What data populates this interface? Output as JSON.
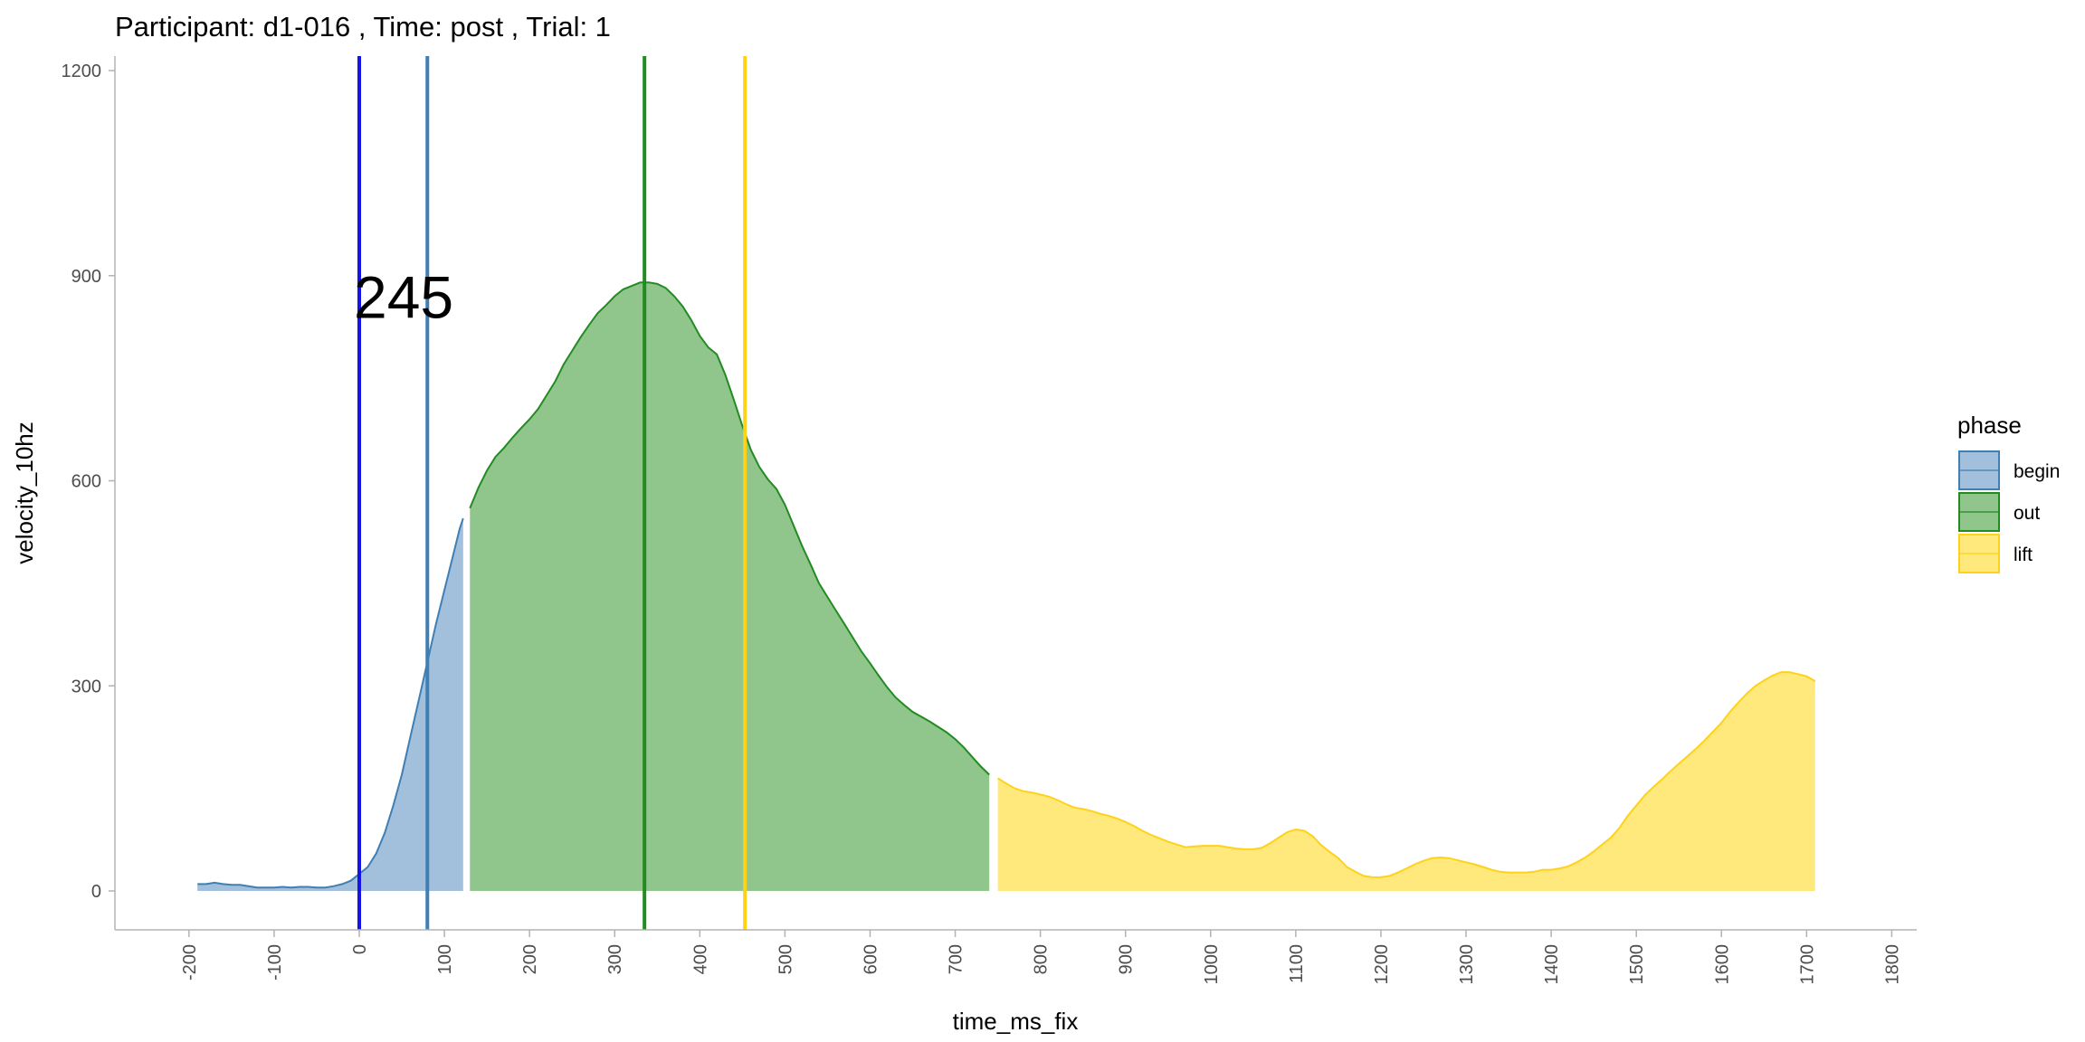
{
  "chart_data": {
    "type": "area",
    "title": "Participant:  d1-016 , Time: post , Trial:  1",
    "xlabel": "time_ms_fix",
    "ylabel": "velocity_10hz",
    "xlim": [
      -200,
      1800
    ],
    "ylim": [
      0,
      1200
    ],
    "x_ticks": [
      -200,
      -100,
      0,
      100,
      200,
      300,
      400,
      500,
      600,
      700,
      800,
      900,
      1000,
      1100,
      1200,
      1300,
      1400,
      1500,
      1600,
      1700,
      1800
    ],
    "x_tick_labels": [
      "-200",
      "-100",
      "0",
      "100",
      "200",
      "300",
      "400",
      "500",
      "600",
      "700",
      "800",
      "900",
      "1000",
      "1100",
      "1200",
      "1300",
      "1400",
      "1500",
      "1600",
      "1700",
      "1800"
    ],
    "y_ticks": [
      0,
      300,
      600,
      900,
      1200
    ],
    "y_tick_labels": [
      "0",
      "300",
      "600",
      "900",
      "1200"
    ],
    "grid": false,
    "legend": {
      "title": "phase",
      "placement": "right",
      "entries": [
        {
          "name": "begin",
          "fill": "#a2bfdb",
          "line": "#3f7fb3"
        },
        {
          "name": "out",
          "fill": "#90c58c",
          "line": "#228b22"
        },
        {
          "name": "lift",
          "fill": "#ffe97c",
          "line": "#ffd21a"
        }
      ]
    },
    "series": [
      {
        "name": "begin",
        "fill": "#a2bfdb",
        "line": "#3f7fb3",
        "points": [
          [
            -190,
            10
          ],
          [
            -180,
            10
          ],
          [
            -170,
            12
          ],
          [
            -160,
            10
          ],
          [
            -150,
            9
          ],
          [
            -140,
            9
          ],
          [
            -130,
            7
          ],
          [
            -120,
            5
          ],
          [
            -110,
            5
          ],
          [
            -100,
            5
          ],
          [
            -90,
            6
          ],
          [
            -80,
            5
          ],
          [
            -70,
            6
          ],
          [
            -60,
            6
          ],
          [
            -50,
            5
          ],
          [
            -40,
            5
          ],
          [
            -30,
            7
          ],
          [
            -20,
            10
          ],
          [
            -10,
            15
          ],
          [
            0,
            25
          ],
          [
            10,
            35
          ],
          [
            20,
            55
          ],
          [
            30,
            85
          ],
          [
            40,
            125
          ],
          [
            50,
            170
          ],
          [
            60,
            225
          ],
          [
            70,
            280
          ],
          [
            80,
            335
          ],
          [
            90,
            390
          ],
          [
            100,
            440
          ],
          [
            110,
            490
          ],
          [
            118,
            530
          ],
          [
            122,
            545
          ]
        ]
      },
      {
        "name": "out",
        "fill": "#90c58c",
        "line": "#228b22",
        "points": [
          [
            130,
            560
          ],
          [
            140,
            590
          ],
          [
            150,
            615
          ],
          [
            160,
            635
          ],
          [
            170,
            648
          ],
          [
            180,
            663
          ],
          [
            190,
            677
          ],
          [
            200,
            690
          ],
          [
            210,
            705
          ],
          [
            220,
            725
          ],
          [
            230,
            745
          ],
          [
            240,
            770
          ],
          [
            250,
            790
          ],
          [
            260,
            810
          ],
          [
            270,
            828
          ],
          [
            280,
            845
          ],
          [
            290,
            857
          ],
          [
            300,
            870
          ],
          [
            310,
            880
          ],
          [
            320,
            885
          ],
          [
            330,
            890
          ],
          [
            340,
            890
          ],
          [
            350,
            888
          ],
          [
            360,
            882
          ],
          [
            370,
            870
          ],
          [
            380,
            855
          ],
          [
            390,
            835
          ],
          [
            400,
            812
          ],
          [
            410,
            795
          ],
          [
            420,
            785
          ],
          [
            430,
            755
          ],
          [
            440,
            718
          ],
          [
            450,
            680
          ],
          [
            460,
            645
          ],
          [
            470,
            620
          ],
          [
            480,
            602
          ],
          [
            490,
            588
          ],
          [
            500,
            565
          ],
          [
            510,
            535
          ],
          [
            520,
            505
          ],
          [
            530,
            478
          ],
          [
            540,
            450
          ],
          [
            550,
            430
          ],
          [
            560,
            410
          ],
          [
            570,
            390
          ],
          [
            580,
            370
          ],
          [
            590,
            350
          ],
          [
            600,
            333
          ],
          [
            610,
            315
          ],
          [
            620,
            298
          ],
          [
            630,
            283
          ],
          [
            640,
            272
          ],
          [
            650,
            262
          ],
          [
            660,
            255
          ],
          [
            670,
            248
          ],
          [
            680,
            240
          ],
          [
            690,
            232
          ],
          [
            700,
            222
          ],
          [
            710,
            210
          ],
          [
            720,
            196
          ],
          [
            730,
            182
          ],
          [
            740,
            170
          ]
        ]
      },
      {
        "name": "lift",
        "fill": "#ffe97c",
        "line": "#ffd21a",
        "points": [
          [
            750,
            165
          ],
          [
            760,
            157
          ],
          [
            770,
            150
          ],
          [
            780,
            146
          ],
          [
            790,
            144
          ],
          [
            800,
            141
          ],
          [
            810,
            138
          ],
          [
            820,
            133
          ],
          [
            830,
            127
          ],
          [
            840,
            122
          ],
          [
            850,
            120
          ],
          [
            860,
            117
          ],
          [
            870,
            113
          ],
          [
            880,
            110
          ],
          [
            890,
            106
          ],
          [
            900,
            101
          ],
          [
            910,
            95
          ],
          [
            920,
            88
          ],
          [
            930,
            82
          ],
          [
            940,
            77
          ],
          [
            950,
            72
          ],
          [
            960,
            68
          ],
          [
            970,
            64
          ],
          [
            980,
            65
          ],
          [
            990,
            66
          ],
          [
            1000,
            66
          ],
          [
            1010,
            66
          ],
          [
            1020,
            64
          ],
          [
            1030,
            62
          ],
          [
            1040,
            61
          ],
          [
            1050,
            61
          ],
          [
            1060,
            63
          ],
          [
            1070,
            70
          ],
          [
            1080,
            78
          ],
          [
            1090,
            86
          ],
          [
            1100,
            90
          ],
          [
            1110,
            88
          ],
          [
            1120,
            80
          ],
          [
            1130,
            67
          ],
          [
            1140,
            57
          ],
          [
            1150,
            48
          ],
          [
            1160,
            35
          ],
          [
            1170,
            28
          ],
          [
            1180,
            22
          ],
          [
            1190,
            20
          ],
          [
            1200,
            20
          ],
          [
            1210,
            22
          ],
          [
            1220,
            27
          ],
          [
            1230,
            33
          ],
          [
            1240,
            39
          ],
          [
            1250,
            44
          ],
          [
            1260,
            48
          ],
          [
            1270,
            49
          ],
          [
            1280,
            48
          ],
          [
            1290,
            45
          ],
          [
            1300,
            42
          ],
          [
            1310,
            39
          ],
          [
            1320,
            35
          ],
          [
            1330,
            31
          ],
          [
            1340,
            28
          ],
          [
            1350,
            27
          ],
          [
            1360,
            27
          ],
          [
            1370,
            27
          ],
          [
            1380,
            28
          ],
          [
            1390,
            31
          ],
          [
            1400,
            31
          ],
          [
            1410,
            33
          ],
          [
            1420,
            36
          ],
          [
            1430,
            42
          ],
          [
            1440,
            49
          ],
          [
            1450,
            58
          ],
          [
            1460,
            68
          ],
          [
            1470,
            78
          ],
          [
            1480,
            92
          ],
          [
            1490,
            110
          ],
          [
            1500,
            125
          ],
          [
            1510,
            140
          ],
          [
            1520,
            152
          ],
          [
            1530,
            163
          ],
          [
            1540,
            175
          ],
          [
            1550,
            186
          ],
          [
            1560,
            197
          ],
          [
            1570,
            208
          ],
          [
            1580,
            220
          ],
          [
            1590,
            233
          ],
          [
            1600,
            246
          ],
          [
            1610,
            262
          ],
          [
            1620,
            276
          ],
          [
            1630,
            289
          ],
          [
            1640,
            300
          ],
          [
            1650,
            308
          ],
          [
            1660,
            315
          ],
          [
            1670,
            320
          ],
          [
            1680,
            320
          ],
          [
            1690,
            317
          ],
          [
            1700,
            314
          ],
          [
            1710,
            307
          ]
        ]
      }
    ],
    "vlines": [
      {
        "x": 0,
        "color": "#1414e6",
        "name": "vline-blue"
      },
      {
        "x": 80,
        "color": "#3f7fb3",
        "name": "vline-steelblue"
      },
      {
        "x": 335,
        "color": "#228b22",
        "name": "vline-green"
      },
      {
        "x": 453,
        "color": "#ffd21a",
        "name": "vline-gold"
      }
    ],
    "annotation": {
      "text": "245",
      "x": 0,
      "y": 870
    }
  }
}
